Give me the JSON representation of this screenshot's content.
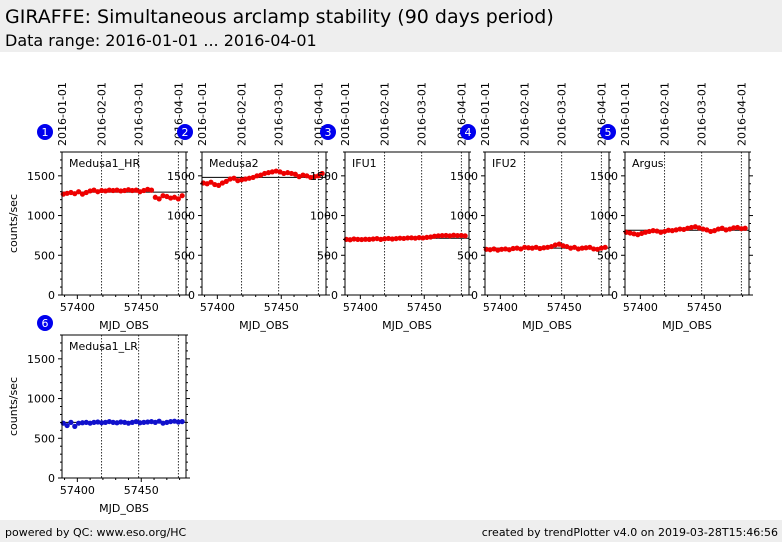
{
  "header": {
    "title": "GIRAFFE: Simultaneous arclamp stability (90 days period)",
    "subtitle": "Data range: 2016-01-01 ... 2016-04-01"
  },
  "footer": {
    "left": "powered by QC: www.eso.org/HC",
    "right": "created by trendPlotter v4.0 on 2019-03-28T15:46:56"
  },
  "colors": {
    "red": "#ee0000",
    "blue": "#1111cc",
    "badge": "#0000ee"
  },
  "chart_data": [
    {
      "type": "scatter",
      "index": "1",
      "label": "Medusa1_HR",
      "color": "red",
      "xlabel": "MJD_OBS",
      "ylabel": "counts/sec",
      "xlim": [
        57388,
        57485
      ],
      "ylim": [
        0,
        1800
      ],
      "xticks": [
        57400,
        57450
      ],
      "yticks": [
        0,
        500,
        1000,
        1500
      ],
      "date_marks": [
        {
          "x": 57388,
          "label": "2016-01-01"
        },
        {
          "x": 57419,
          "label": "2016-02-01"
        },
        {
          "x": 57448,
          "label": "2016-03-01"
        },
        {
          "x": 57479,
          "label": "2016-04-01"
        }
      ],
      "reference": 1295,
      "x": [
        57389,
        57392,
        57395,
        57398,
        57401,
        57404,
        57407,
        57410,
        57413,
        57416,
        57419,
        57422,
        57425,
        57428,
        57431,
        57434,
        57437,
        57440,
        57443,
        57446,
        57449,
        57452,
        57455,
        57458,
        57461,
        57464,
        57467,
        57470,
        57473,
        57476,
        57479,
        57482
      ],
      "y": [
        1270,
        1280,
        1290,
        1275,
        1300,
        1270,
        1290,
        1310,
        1320,
        1300,
        1315,
        1310,
        1320,
        1315,
        1320,
        1310,
        1315,
        1325,
        1315,
        1320,
        1300,
        1315,
        1330,
        1320,
        1230,
        1210,
        1250,
        1240,
        1220,
        1230,
        1210,
        1250
      ]
    },
    {
      "type": "scatter",
      "index": "2",
      "label": "Medusa2",
      "color": "red",
      "xlabel": "MJD_OBS",
      "ylabel": "",
      "xlim": [
        57388,
        57485
      ],
      "ylim": [
        0,
        1800
      ],
      "xticks": [
        57400,
        57450
      ],
      "yticks": [
        0,
        500,
        1000,
        1500
      ],
      "date_marks": [
        {
          "x": 57388,
          "label": "2016-01-01"
        },
        {
          "x": 57419,
          "label": "2016-02-01"
        },
        {
          "x": 57448,
          "label": "2016-03-01"
        },
        {
          "x": 57479,
          "label": "2016-04-01"
        }
      ],
      "reference": 1480,
      "x": [
        57389,
        57392,
        57395,
        57398,
        57401,
        57404,
        57407,
        57410,
        57413,
        57416,
        57419,
        57422,
        57425,
        57428,
        57431,
        57434,
        57437,
        57440,
        57443,
        57446,
        57449,
        57452,
        57455,
        57458,
        57461,
        57464,
        57467,
        57470,
        57473,
        57476,
        57479,
        57482
      ],
      "y": [
        1410,
        1400,
        1420,
        1390,
        1380,
        1410,
        1430,
        1460,
        1470,
        1440,
        1450,
        1460,
        1470,
        1480,
        1500,
        1510,
        1530,
        1540,
        1550,
        1560,
        1550,
        1530,
        1540,
        1530,
        1520,
        1490,
        1510,
        1500,
        1480,
        1490,
        1500,
        1530
      ]
    },
    {
      "type": "scatter",
      "index": "3",
      "label": "IFU1",
      "color": "red",
      "xlabel": "MJD_OBS",
      "ylabel": "",
      "xlim": [
        57388,
        57485
      ],
      "ylim": [
        0,
        1800
      ],
      "xticks": [
        57400,
        57450
      ],
      "yticks": [
        0,
        500,
        1000,
        1500
      ],
      "date_marks": [
        {
          "x": 57388,
          "label": "2016-01-01"
        },
        {
          "x": 57419,
          "label": "2016-02-01"
        },
        {
          "x": 57448,
          "label": "2016-03-01"
        },
        {
          "x": 57479,
          "label": "2016-04-01"
        }
      ],
      "reference": 715,
      "x": [
        57389,
        57392,
        57395,
        57398,
        57401,
        57404,
        57407,
        57410,
        57413,
        57416,
        57419,
        57422,
        57425,
        57428,
        57431,
        57434,
        57437,
        57440,
        57443,
        57446,
        57449,
        57452,
        57455,
        57458,
        57461,
        57464,
        57467,
        57470,
        57473,
        57476,
        57479,
        57482
      ],
      "y": [
        700,
        695,
        705,
        700,
        698,
        702,
        700,
        705,
        710,
        700,
        708,
        712,
        705,
        710,
        715,
        712,
        718,
        720,
        715,
        722,
        718,
        725,
        730,
        740,
        745,
        748,
        750,
        745,
        752,
        748,
        750,
        745
      ]
    },
    {
      "type": "scatter",
      "index": "4",
      "label": "IFU2",
      "color": "red",
      "xlabel": "MJD_OBS",
      "ylabel": "",
      "xlim": [
        57388,
        57485
      ],
      "ylim": [
        0,
        1800
      ],
      "xticks": [
        57400,
        57450
      ],
      "yticks": [
        0,
        500,
        1000,
        1500
      ],
      "date_marks": [
        {
          "x": 57388,
          "label": "2016-01-01"
        },
        {
          "x": 57419,
          "label": "2016-02-01"
        },
        {
          "x": 57448,
          "label": "2016-03-01"
        },
        {
          "x": 57479,
          "label": "2016-04-01"
        }
      ],
      "reference": 590,
      "x": [
        57389,
        57392,
        57395,
        57398,
        57401,
        57404,
        57407,
        57410,
        57413,
        57416,
        57419,
        57422,
        57425,
        57428,
        57431,
        57434,
        57437,
        57440,
        57443,
        57446,
        57449,
        57452,
        57455,
        57458,
        57461,
        57464,
        57467,
        57470,
        57473,
        57476,
        57479,
        57482
      ],
      "y": [
        575,
        570,
        580,
        565,
        575,
        580,
        570,
        585,
        590,
        580,
        600,
        595,
        590,
        600,
        585,
        595,
        600,
        610,
        630,
        640,
        620,
        610,
        590,
        600,
        580,
        590,
        595,
        600,
        580,
        575,
        590,
        600
      ]
    },
    {
      "type": "scatter",
      "index": "5",
      "label": "Argus",
      "color": "red",
      "xlabel": "MJD_OBS",
      "ylabel": "",
      "xlim": [
        57388,
        57485
      ],
      "ylim": [
        0,
        1800
      ],
      "xticks": [
        57400,
        57450
      ],
      "yticks": [
        0,
        500,
        1000,
        1500
      ],
      "date_marks": [
        {
          "x": 57388,
          "label": "2016-01-01"
        },
        {
          "x": 57419,
          "label": "2016-02-01"
        },
        {
          "x": 57448,
          "label": "2016-03-01"
        },
        {
          "x": 57479,
          "label": "2016-04-01"
        }
      ],
      "reference": 815,
      "x": [
        57389,
        57392,
        57395,
        57398,
        57401,
        57404,
        57407,
        57410,
        57413,
        57416,
        57419,
        57422,
        57425,
        57428,
        57431,
        57434,
        57437,
        57440,
        57443,
        57446,
        57449,
        57452,
        57455,
        57458,
        57461,
        57464,
        57467,
        57470,
        57473,
        57476,
        57479,
        57482
      ],
      "y": [
        790,
        780,
        770,
        760,
        775,
        790,
        800,
        810,
        805,
        790,
        800,
        815,
        810,
        820,
        830,
        825,
        840,
        850,
        860,
        845,
        830,
        820,
        800,
        810,
        830,
        840,
        820,
        830,
        845,
        850,
        835,
        840
      ]
    },
    {
      "type": "scatter",
      "index": "6",
      "label": "Medusa1_LR",
      "color": "blue",
      "xlabel": "MJD_OBS",
      "ylabel": "counts/sec",
      "xlim": [
        57388,
        57485
      ],
      "ylim": [
        0,
        1800
      ],
      "xticks": [
        57400,
        57450
      ],
      "yticks": [
        0,
        500,
        1000,
        1500
      ],
      "date_marks": [
        {
          "x": 57388,
          "label": ""
        },
        {
          "x": 57419,
          "label": ""
        },
        {
          "x": 57448,
          "label": ""
        },
        {
          "x": 57479,
          "label": ""
        }
      ],
      "reference": 700,
      "x": [
        57389,
        57392,
        57395,
        57398,
        57401,
        57404,
        57407,
        57410,
        57413,
        57416,
        57419,
        57422,
        57425,
        57428,
        57431,
        57434,
        57437,
        57440,
        57443,
        57446,
        57449,
        57452,
        57455,
        57458,
        57461,
        57464,
        57467,
        57470,
        57473,
        57476,
        57479,
        57482
      ],
      "y": [
        690,
        660,
        700,
        650,
        690,
        695,
        700,
        690,
        700,
        705,
        695,
        700,
        710,
        700,
        695,
        705,
        700,
        690,
        700,
        710,
        695,
        700,
        705,
        710,
        700,
        715,
        690,
        700,
        710,
        715,
        705,
        710
      ]
    }
  ]
}
